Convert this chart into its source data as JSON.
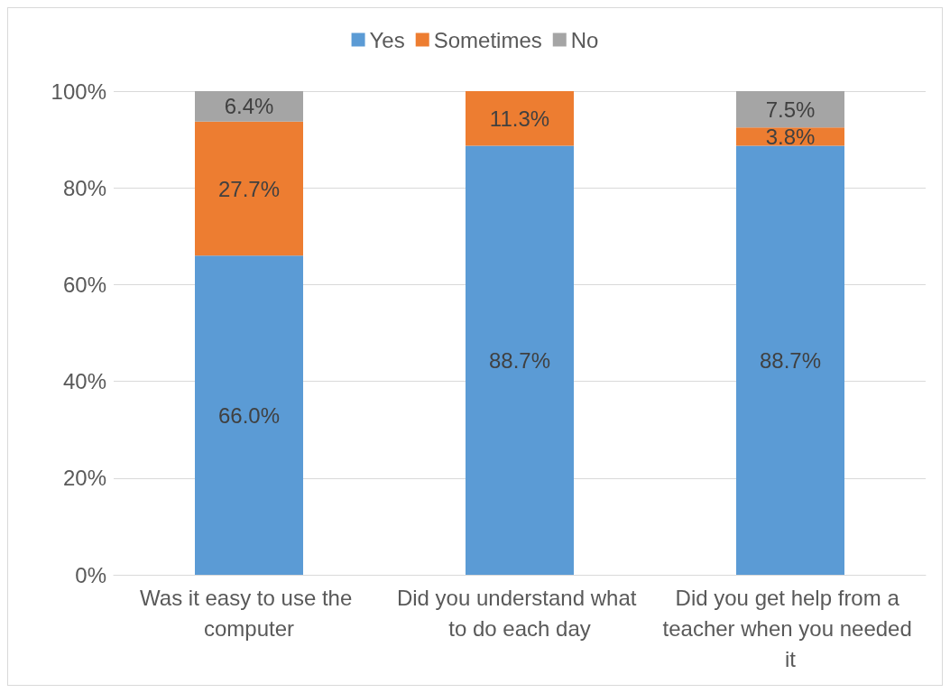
{
  "chart_data": {
    "type": "bar",
    "stacked": true,
    "categories": [
      "Was it easy to use the computer",
      "Did you understand what to do each day",
      "Did you get help from a teacher when you needed it"
    ],
    "series": [
      {
        "name": "Yes",
        "color": "#5b9bd5",
        "values": [
          66.0,
          88.7,
          88.7
        ],
        "value_labels": [
          "66.0%",
          "88.7%",
          "88.7%"
        ]
      },
      {
        "name": "Sometimes",
        "color": "#ed7d31",
        "values": [
          27.7,
          11.3,
          3.8
        ],
        "value_labels": [
          "27.7%",
          "11.3%",
          "3.8%"
        ]
      },
      {
        "name": "No",
        "color": "#a5a5a5",
        "values": [
          6.4,
          null,
          7.5
        ],
        "value_labels": [
          "6.4%",
          null,
          "7.5%"
        ]
      }
    ],
    "ylim": [
      0,
      100
    ],
    "yticks": [
      {
        "value": 0,
        "label": "0%"
      },
      {
        "value": 20,
        "label": "20%"
      },
      {
        "value": 40,
        "label": "40%"
      },
      {
        "value": 60,
        "label": "60%"
      },
      {
        "value": 80,
        "label": "80%"
      },
      {
        "value": 100,
        "label": "100%"
      }
    ],
    "grid": "y",
    "legend": "top"
  }
}
